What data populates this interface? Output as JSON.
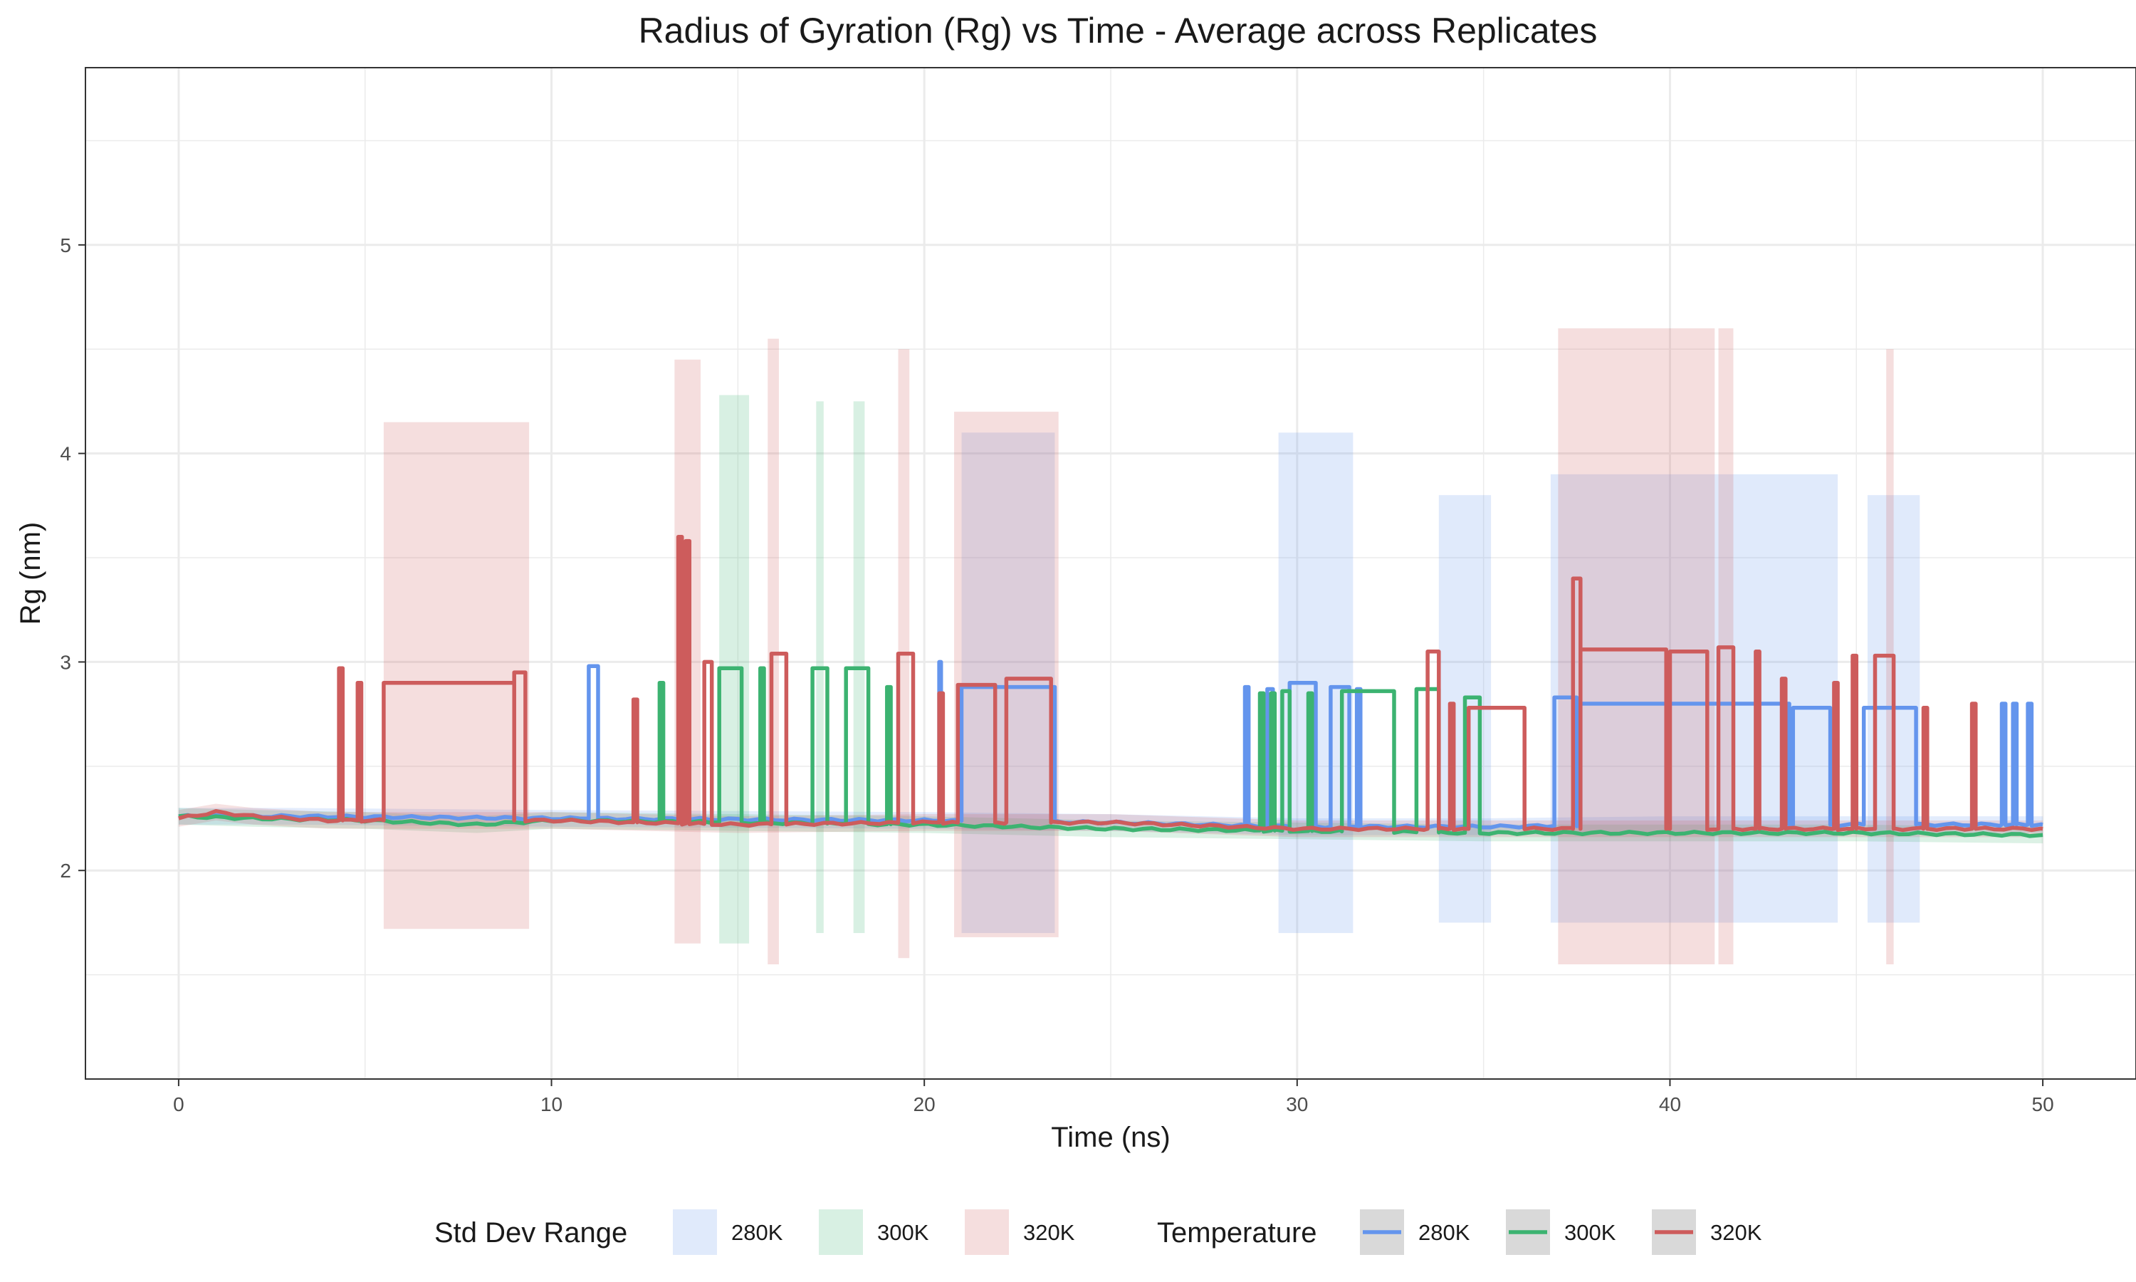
{
  "chart_data": {
    "type": "line",
    "title": "Radius of Gyration (Rg) vs Time - Average across Replicates",
    "xlabel": "Time (ns)",
    "ylabel": "Rg (nm)",
    "xlim": [
      -2.5,
      52.5
    ],
    "ylim": [
      1.0,
      5.85
    ],
    "x_ticks": [
      0,
      10,
      20,
      30,
      40,
      50
    ],
    "y_ticks": [
      2,
      3,
      4,
      5
    ],
    "grid": true,
    "legend_position": "bottom",
    "colors": {
      "280K": "#6495ED",
      "300K": "#3CB371",
      "320K": "#CD5C5C"
    },
    "legends": [
      {
        "title": "Std Dev Range",
        "kind": "fill",
        "entries": [
          "280K",
          "300K",
          "320K"
        ]
      },
      {
        "title": "Temperature",
        "kind": "line",
        "entries": [
          "280K",
          "300K",
          "320K"
        ]
      }
    ],
    "series": [
      {
        "name": "280K",
        "baseline": [
          [
            0,
            2.26
          ],
          [
            3,
            2.26
          ],
          [
            10,
            2.25
          ],
          [
            20,
            2.24
          ],
          [
            25,
            2.23
          ],
          [
            30,
            2.21
          ],
          [
            35,
            2.21
          ],
          [
            40,
            2.22
          ],
          [
            50,
            2.22
          ]
        ],
        "excursions": [
          [
            11.0,
            11.25,
            2.98
          ],
          [
            20.4,
            20.45,
            3.0
          ],
          [
            21.0,
            23.5,
            2.88
          ],
          [
            28.6,
            28.7,
            2.88
          ],
          [
            29.2,
            29.35,
            2.87
          ],
          [
            29.8,
            30.5,
            2.9
          ],
          [
            30.9,
            31.4,
            2.88
          ],
          [
            31.6,
            31.7,
            2.87
          ],
          [
            36.9,
            37.5,
            2.83
          ],
          [
            37.6,
            43.2,
            2.8
          ],
          [
            43.3,
            44.3,
            2.78
          ],
          [
            45.2,
            46.6,
            2.78
          ],
          [
            48.9,
            49.0,
            2.8
          ],
          [
            49.2,
            49.3,
            2.8
          ],
          [
            49.6,
            49.7,
            2.8
          ]
        ],
        "std_bands": [
          [
            21.0,
            23.5,
            1.7,
            4.1
          ],
          [
            29.5,
            31.5,
            1.7,
            4.1
          ],
          [
            33.8,
            35.2,
            1.75,
            3.8
          ],
          [
            36.8,
            44.5,
            1.75,
            3.9
          ],
          [
            45.3,
            46.7,
            1.75,
            3.8
          ]
        ]
      },
      {
        "name": "300K",
        "baseline": [
          [
            0,
            2.26
          ],
          [
            2,
            2.25
          ],
          [
            5,
            2.24
          ],
          [
            8,
            2.22
          ],
          [
            10,
            2.24
          ],
          [
            15,
            2.23
          ],
          [
            20,
            2.22
          ],
          [
            25,
            2.2
          ],
          [
            30,
            2.19
          ],
          [
            35,
            2.18
          ],
          [
            40,
            2.18
          ],
          [
            45,
            2.18
          ],
          [
            50,
            2.17
          ]
        ],
        "excursions": [
          [
            12.9,
            13.0,
            2.9
          ],
          [
            14.5,
            15.1,
            2.97
          ],
          [
            15.6,
            15.7,
            2.97
          ],
          [
            17.0,
            17.4,
            2.97
          ],
          [
            17.9,
            18.5,
            2.97
          ],
          [
            19.0,
            19.1,
            2.88
          ],
          [
            29.0,
            29.1,
            2.85
          ],
          [
            29.3,
            29.4,
            2.85
          ],
          [
            29.6,
            29.8,
            2.86
          ],
          [
            30.3,
            30.4,
            2.85
          ],
          [
            31.2,
            32.6,
            2.86
          ],
          [
            33.2,
            33.8,
            2.87
          ],
          [
            34.5,
            34.9,
            2.83
          ]
        ],
        "std_bands": [
          [
            14.5,
            15.3,
            1.65,
            4.28
          ],
          [
            17.1,
            17.3,
            1.7,
            4.25
          ],
          [
            18.1,
            18.4,
            1.7,
            4.25
          ]
        ]
      },
      {
        "name": "320K",
        "baseline": [
          [
            0,
            2.25
          ],
          [
            1,
            2.28
          ],
          [
            2,
            2.26
          ],
          [
            4,
            2.24
          ],
          [
            10,
            2.24
          ],
          [
            15,
            2.22
          ],
          [
            20,
            2.23
          ],
          [
            25,
            2.23
          ],
          [
            30,
            2.2
          ],
          [
            35,
            2.2
          ],
          [
            40,
            2.2
          ],
          [
            45,
            2.2
          ],
          [
            50,
            2.2
          ]
        ],
        "excursions": [
          [
            4.3,
            4.4,
            2.97
          ],
          [
            4.8,
            4.9,
            2.9
          ],
          [
            5.5,
            9.0,
            2.9
          ],
          [
            9.0,
            9.3,
            2.95
          ],
          [
            12.2,
            12.3,
            2.82
          ],
          [
            13.4,
            13.5,
            3.6
          ],
          [
            13.6,
            13.7,
            3.58
          ],
          [
            14.1,
            14.3,
            3.0
          ],
          [
            15.9,
            16.3,
            3.04
          ],
          [
            19.3,
            19.7,
            3.04
          ],
          [
            20.4,
            20.5,
            2.85
          ],
          [
            20.9,
            21.9,
            2.89
          ],
          [
            22.2,
            23.4,
            2.92
          ],
          [
            33.5,
            33.8,
            3.05
          ],
          [
            34.1,
            34.2,
            2.8
          ],
          [
            34.6,
            36.1,
            2.78
          ],
          [
            37.4,
            37.6,
            3.4
          ],
          [
            37.6,
            39.9,
            3.06
          ],
          [
            40.0,
            41.0,
            3.05
          ],
          [
            41.3,
            41.7,
            3.07
          ],
          [
            42.3,
            42.4,
            3.05
          ],
          [
            43.0,
            43.1,
            2.92
          ],
          [
            44.4,
            44.5,
            2.9
          ],
          [
            44.9,
            45.0,
            3.03
          ],
          [
            45.5,
            46.0,
            3.03
          ],
          [
            46.8,
            46.9,
            2.78
          ],
          [
            48.1,
            48.2,
            2.8
          ]
        ],
        "std_bands": [
          [
            5.5,
            9.4,
            1.72,
            4.15
          ],
          [
            13.3,
            14.0,
            1.65,
            4.45
          ],
          [
            15.8,
            16.1,
            1.55,
            4.55
          ],
          [
            19.3,
            19.6,
            1.58,
            4.5
          ],
          [
            20.8,
            23.6,
            1.68,
            4.2
          ],
          [
            37.0,
            41.2,
            1.55,
            4.6
          ],
          [
            41.3,
            41.7,
            1.55,
            4.6
          ],
          [
            45.8,
            46.0,
            1.55,
            4.5
          ]
        ]
      }
    ]
  }
}
